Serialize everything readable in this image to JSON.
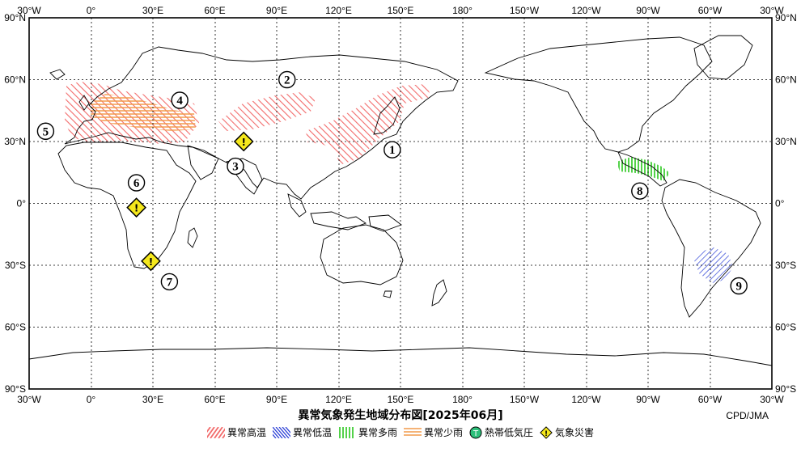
{
  "map": {
    "title": "異常気象発生地域分布図[2025年06月]",
    "credit": "CPD/JMA",
    "lon_ticks_top": [
      "30°W",
      "0°",
      "30°E",
      "60°E",
      "90°E",
      "120°E",
      "150°E",
      "180°",
      "150°W",
      "120°W",
      "90°W",
      "60°W",
      "30°W"
    ],
    "lon_ticks_bottom": [
      "30°W",
      "0°",
      "30°E",
      "60°E",
      "90°E",
      "120°E",
      "150°E",
      "180°",
      "150°W",
      "120°W",
      "90°W",
      "60°W",
      "30°W"
    ],
    "lat_ticks": [
      "90°N",
      "60°N",
      "30°N",
      "0°",
      "30°S",
      "60°S",
      "90°S"
    ],
    "colors": {
      "high_temp": "#f26b6b",
      "low_temp": "#2b3fd6",
      "heavy_rain": "#29c71c",
      "light_rain": "#f29a4a",
      "cyclone": "#2dbf7a",
      "disaster": "#f5e81c"
    },
    "regions": [
      {
        "id": "1",
        "label": "1",
        "lon": 146,
        "lat": 26
      },
      {
        "id": "2",
        "label": "2",
        "lon": 95,
        "lat": 60
      },
      {
        "id": "3",
        "label": "3",
        "lon": 70,
        "lat": 18
      },
      {
        "id": "4",
        "label": "4",
        "lon": 43,
        "lat": 50
      },
      {
        "id": "5",
        "label": "5",
        "lon": -22,
        "lat": 35
      },
      {
        "id": "6",
        "label": "6",
        "lon": 22,
        "lat": 10
      },
      {
        "id": "7",
        "label": "7",
        "lon": 38,
        "lat": -38
      },
      {
        "id": "8",
        "label": "8",
        "lon": -94,
        "lat": 6
      },
      {
        "id": "9",
        "label": "9",
        "lon": -46,
        "lat": -40
      }
    ],
    "disaster_markers": [
      {
        "lon": 74,
        "lat": 30
      },
      {
        "lon": 22,
        "lat": -2
      },
      {
        "lon": 29,
        "lat": -28
      }
    ],
    "legend": [
      {
        "key": "high_temp",
        "label": "異常高温"
      },
      {
        "key": "low_temp",
        "label": "異常低温"
      },
      {
        "key": "heavy_rain",
        "label": "異常多雨"
      },
      {
        "key": "light_rain",
        "label": "異常少雨"
      },
      {
        "key": "cyclone",
        "label": "熱帯低気圧",
        "symbol": "T"
      },
      {
        "key": "disaster",
        "label": "気象災害",
        "symbol": "!"
      }
    ]
  }
}
